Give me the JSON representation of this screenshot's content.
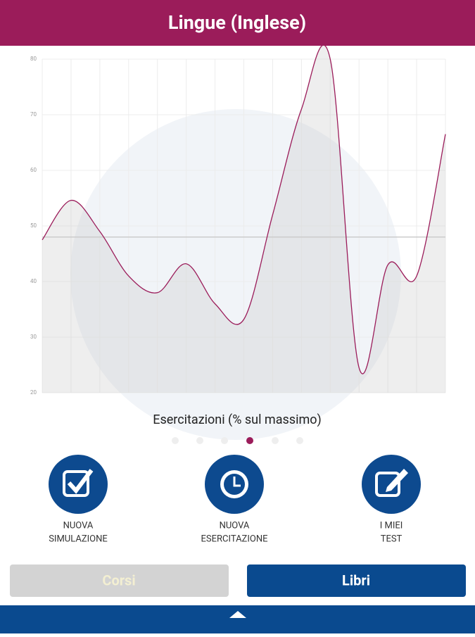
{
  "header": {
    "title": "Lingue (Inglese)"
  },
  "chart_data": {
    "type": "line",
    "fill": true,
    "categories": [
      null,
      null,
      null,
      null,
      null,
      null,
      null,
      null,
      null,
      null,
      null,
      null,
      null,
      null,
      null
    ],
    "values": [
      47.5,
      54.6,
      49,
      41,
      38,
      43.2,
      36,
      33.2,
      52,
      71,
      80,
      24.5,
      43,
      41,
      66.5
    ],
    "color": "#9b1c5a",
    "average": 48,
    "ylim": [
      20,
      80
    ],
    "yticks": [
      20,
      30,
      40,
      50,
      60,
      70,
      80
    ],
    "grid": true
  },
  "caption": "Esercitazioni (% sul massimo)",
  "actions": [
    {
      "line1": "NUOVA",
      "line2": "SIMULAZIONE"
    },
    {
      "line1": "NUOVA",
      "line2": "ESERCITAZIONE"
    },
    {
      "line1": "I MIEI",
      "line2": "TEST"
    }
  ],
  "buttons": {
    "left": "Corsi",
    "right": "Libri"
  }
}
